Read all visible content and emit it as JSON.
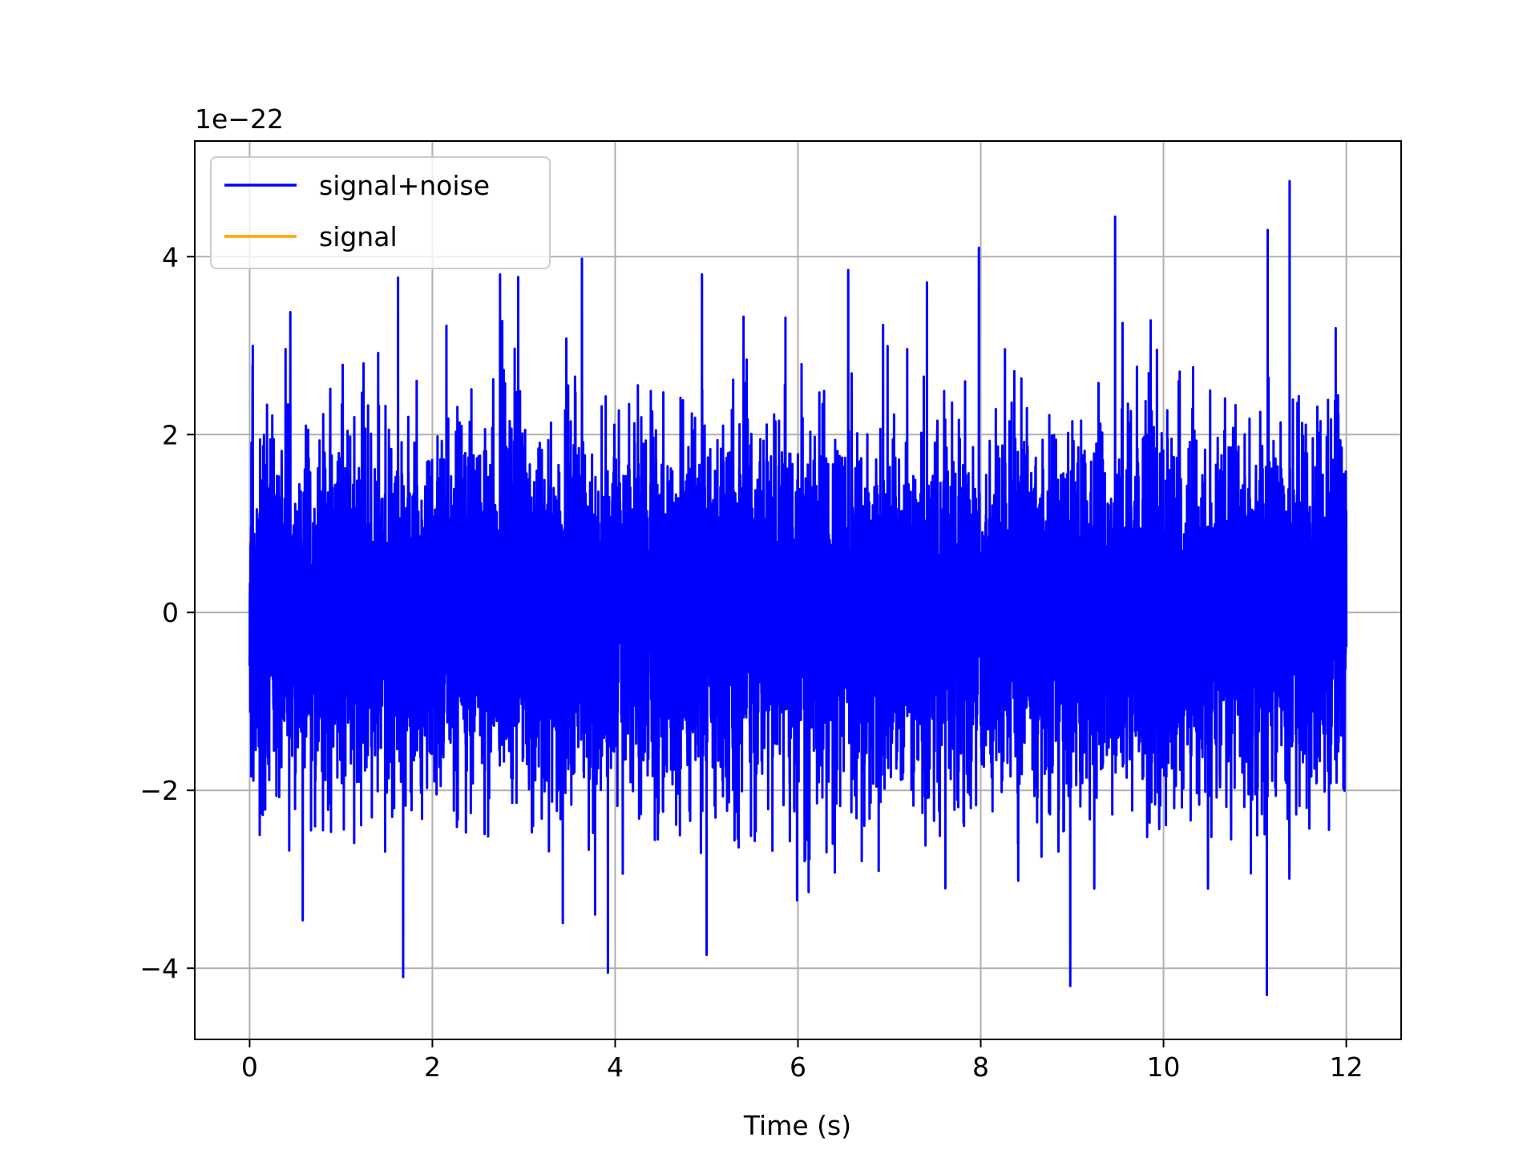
{
  "chart_data": {
    "type": "line",
    "title": "",
    "xlabel": "Time (s)",
    "ylabel": "",
    "offset_label": "1e−22",
    "scale_factor": 1e-22,
    "xlim": [
      -0.6,
      12.6
    ],
    "ylim": [
      -4.8,
      5.3
    ],
    "xticks": [
      0,
      2,
      4,
      6,
      8,
      10,
      12
    ],
    "xtick_labels": [
      "0",
      "2",
      "4",
      "6",
      "8",
      "10",
      "12"
    ],
    "yticks": [
      -4,
      -2,
      0,
      2,
      4
    ],
    "ytick_labels": [
      "−4",
      "−2",
      "0",
      "2",
      "4"
    ],
    "grid": true,
    "legend_position": "top-left",
    "series": [
      {
        "name": "signal+noise",
        "color": "#0000ff",
        "x_range": [
          0,
          12
        ],
        "y_range": [
          -4.3,
          4.85
        ],
        "std": 1.0,
        "peaks": [
          {
            "x": 1.68,
            "y": -4.1
          },
          {
            "x": 2.74,
            "y": 3.8
          },
          {
            "x": 3.92,
            "y": -4.05
          },
          {
            "x": 4.95,
            "y": 3.8
          },
          {
            "x": 5.0,
            "y": -3.85
          },
          {
            "x": 6.55,
            "y": 3.85
          },
          {
            "x": 7.98,
            "y": 4.1
          },
          {
            "x": 8.98,
            "y": -4.2
          },
          {
            "x": 9.47,
            "y": 4.45
          },
          {
            "x": 11.13,
            "y": -4.3
          },
          {
            "x": 11.14,
            "y": 4.3
          },
          {
            "x": 11.38,
            "y": 4.85
          }
        ]
      },
      {
        "name": "signal",
        "color": "#ffa500",
        "x_range": [
          0,
          12
        ],
        "values_approx_zero": true
      }
    ]
  }
}
